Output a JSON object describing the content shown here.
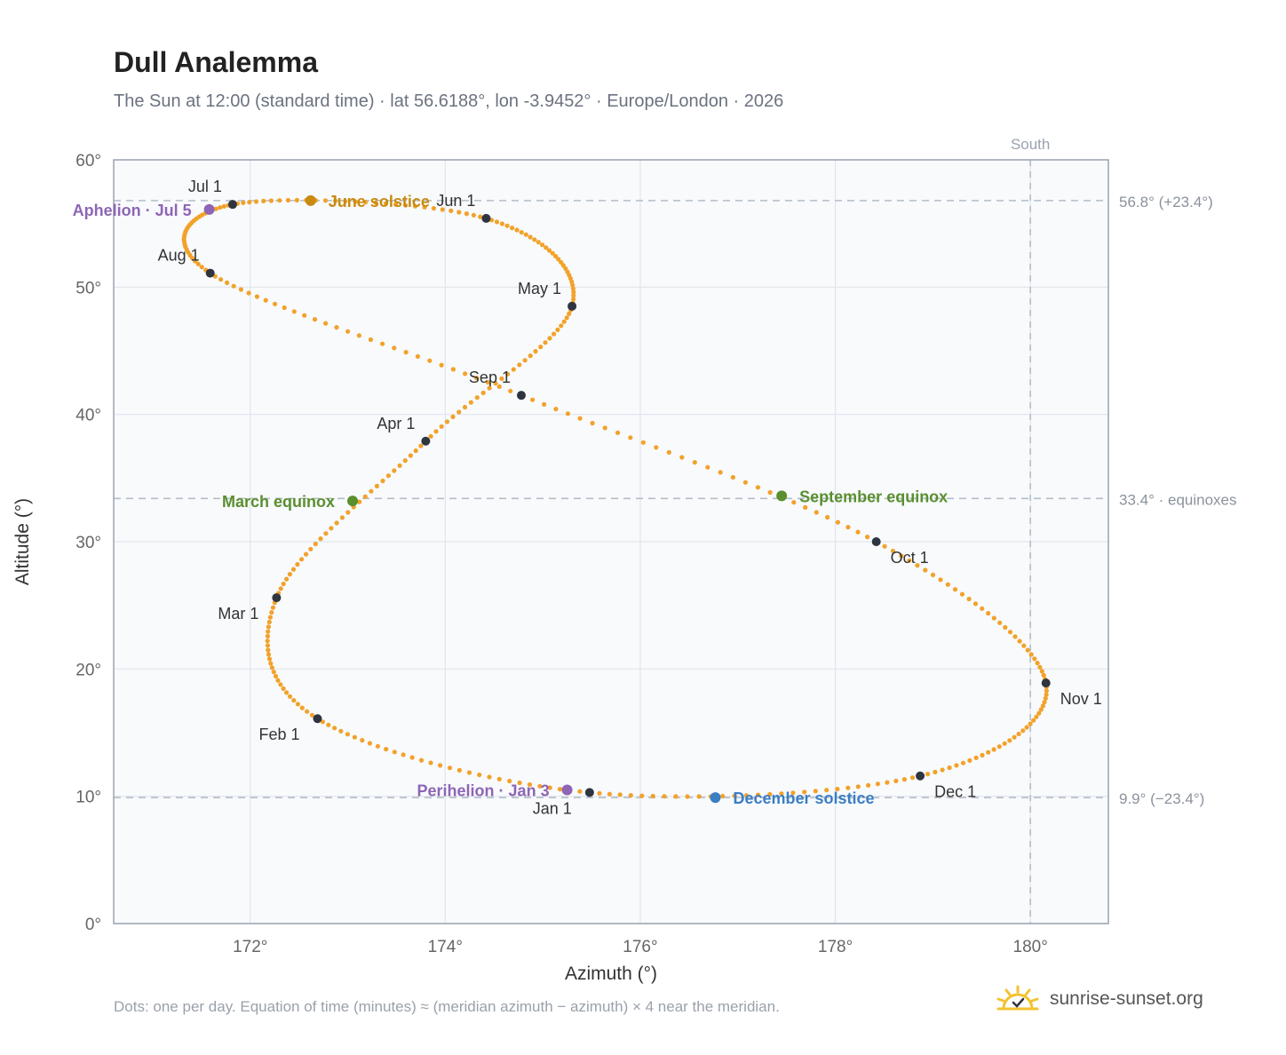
{
  "header": {
    "title": "Dull Analemma",
    "subtitle": "The Sun at 12:00 (standard time) · lat 56.6188°, lon -3.9452° · Europe/London · 2026"
  },
  "footer": {
    "note": "Dots: one per day. Equation of time (minutes) ≈ (meridian azimuth − azimuth) × 4 near the meridian.",
    "brand": "sunrise-sunset.org",
    "brand_icon": "sun-icon"
  },
  "colors": {
    "path": "#f2a22a",
    "month": "#2f3540",
    "solstice_june": "#c88a10",
    "solstice_dec": "#3b7ec4",
    "equinox": "#5a8f2f",
    "apsis": "#8e65b5",
    "ref_line": "#b3bdc8",
    "plot_bg": "#f8fafc",
    "grid": "#e1e6ec",
    "axis_text": "#666666"
  },
  "chart_data": {
    "type": "scatter",
    "title": "Dull Analemma",
    "xlabel": "Azimuth (°)",
    "ylabel": "Altitude (°)",
    "xlim": [
      170.6,
      180.8
    ],
    "ylim": [
      0,
      60
    ],
    "x_ticks": [
      172,
      174,
      176,
      178,
      180
    ],
    "x_tick_labels": [
      "172°",
      "174°",
      "176°",
      "178°",
      "180°"
    ],
    "y_ticks": [
      0,
      10,
      20,
      30,
      40,
      50,
      60
    ],
    "y_tick_labels": [
      "0°",
      "10°",
      "20°",
      "30°",
      "40°",
      "50°",
      "60°"
    ],
    "grid": true,
    "meridian": {
      "azimuth": 180,
      "label": "South"
    },
    "reference_lines": [
      {
        "altitude": 56.8,
        "label": "56.8° (+23.4°)"
      },
      {
        "altitude": 33.4,
        "label": "33.4° · equinoxes"
      },
      {
        "altitude": 9.9,
        "label": "9.9° (−23.4°)"
      }
    ],
    "path_anchors": [
      {
        "label": "Jan 1",
        "az": 175.48,
        "alt": 10.3
      },
      {
        "label": "Feb 1",
        "az": 172.69,
        "alt": 16.1
      },
      {
        "label": "Mar 1",
        "az": 172.27,
        "alt": 25.6
      },
      {
        "label": "Apr 1",
        "az": 173.8,
        "alt": 37.9
      },
      {
        "label": "May 1",
        "az": 175.3,
        "alt": 48.5
      },
      {
        "label": "Jun 1",
        "az": 174.42,
        "alt": 55.4
      },
      {
        "label": "Jul 1",
        "az": 171.82,
        "alt": 56.5
      },
      {
        "label": "Aug 1",
        "az": 171.59,
        "alt": 51.1
      },
      {
        "label": "Sep 1",
        "az": 174.78,
        "alt": 41.5
      },
      {
        "label": "Oct 1",
        "az": 178.42,
        "alt": 30.0
      },
      {
        "label": "Nov 1",
        "az": 180.16,
        "alt": 18.9
      },
      {
        "label": "Dec 1",
        "az": 178.87,
        "alt": 11.6
      },
      {
        "label": "Jan 1",
        "az": 175.48,
        "alt": 10.3
      }
    ],
    "month_points": [
      {
        "label": "Jan 1",
        "az": 175.48,
        "alt": 10.3,
        "label_pos": "below-left"
      },
      {
        "label": "Feb 1",
        "az": 172.69,
        "alt": 16.1,
        "label_pos": "below-left"
      },
      {
        "label": "Mar 1",
        "az": 172.27,
        "alt": 25.6,
        "label_pos": "below-left"
      },
      {
        "label": "Apr 1",
        "az": 173.8,
        "alt": 37.9,
        "label_pos": "above-left"
      },
      {
        "label": "May 1",
        "az": 175.3,
        "alt": 48.5,
        "label_pos": "above-left"
      },
      {
        "label": "Jun 1",
        "az": 174.42,
        "alt": 55.4,
        "label_pos": "above-left"
      },
      {
        "label": "Jul 1",
        "az": 171.82,
        "alt": 56.5,
        "label_pos": "above-left"
      },
      {
        "label": "Aug 1",
        "az": 171.59,
        "alt": 51.1,
        "label_pos": "above-left"
      },
      {
        "label": "Sep 1",
        "az": 174.78,
        "alt": 41.5,
        "label_pos": "above-left"
      },
      {
        "label": "Oct 1",
        "az": 178.42,
        "alt": 30.0,
        "label_pos": "below-right"
      },
      {
        "label": "Nov 1",
        "az": 180.16,
        "alt": 18.9,
        "label_pos": "below-right"
      },
      {
        "label": "Dec 1",
        "az": 178.87,
        "alt": 11.6,
        "label_pos": "below-right"
      }
    ],
    "events": [
      {
        "label": "June solstice",
        "az": 172.62,
        "alt": 56.8,
        "color_key": "solstice_june",
        "side": "right"
      },
      {
        "label": "December solstice",
        "az": 176.77,
        "alt": 9.9,
        "color_key": "solstice_dec",
        "side": "right"
      },
      {
        "label": "March equinox",
        "az": 173.05,
        "alt": 33.2,
        "color_key": "equinox",
        "side": "left"
      },
      {
        "label": "September equinox",
        "az": 177.45,
        "alt": 33.6,
        "color_key": "equinox",
        "side": "right"
      },
      {
        "label": "Aphelion · Jul 5",
        "az": 171.58,
        "alt": 56.1,
        "color_key": "apsis",
        "side": "left"
      },
      {
        "label": "Perihelion · Jan 3",
        "az": 175.25,
        "alt": 10.5,
        "color_key": "apsis",
        "side": "left"
      }
    ]
  }
}
